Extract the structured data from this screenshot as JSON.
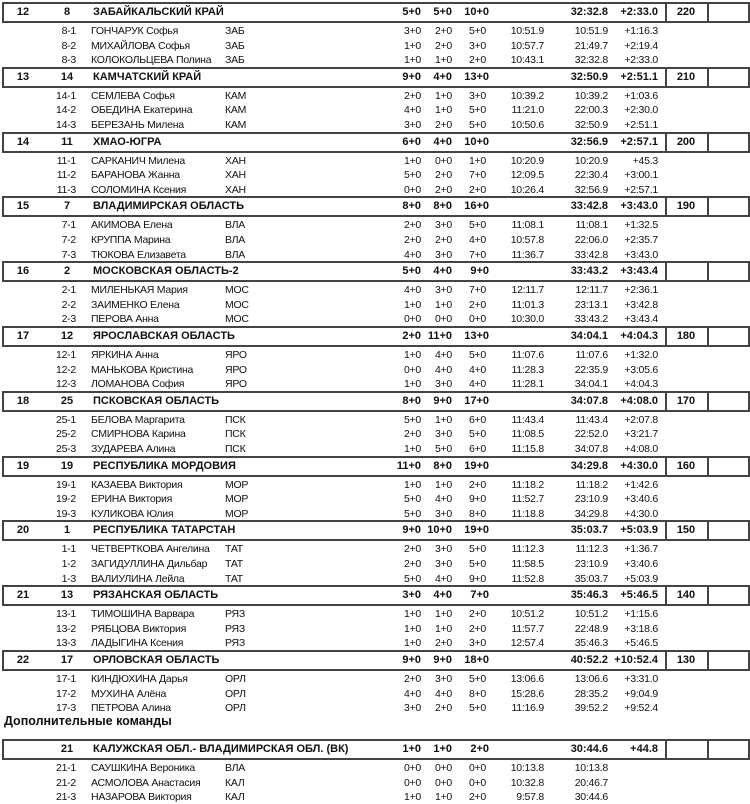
{
  "teams": [
    {
      "place": "12",
      "bib": "8",
      "name": "ЗАБАЙКАЛЬСКИЙ КРАЙ",
      "s1": "5+0",
      "s2": "5+0",
      "tot": "10+0",
      "time": "32:32.8",
      "behind": "+2:33.0",
      "points": "220",
      "members": [
        [
          "8-1",
          "ГОНЧАРУК Софья",
          "ЗАБ",
          "3+0",
          "2+0",
          "5+0",
          "10:51.9",
          "10:51.9",
          "+1:16.3"
        ],
        [
          "8-2",
          "МИХАЙЛОВА Софья",
          "ЗАБ",
          "1+0",
          "2+0",
          "3+0",
          "10:57.7",
          "21:49.7",
          "+2:19.4"
        ],
        [
          "8-3",
          "КОЛОКОЛЬЦЕВА Полина",
          "ЗАБ",
          "1+0",
          "1+0",
          "2+0",
          "10:43.1",
          "32:32.8",
          "+2:33.0"
        ]
      ]
    },
    {
      "place": "13",
      "bib": "14",
      "name": "КАМЧАТСКИЙ КРАЙ",
      "s1": "9+0",
      "s2": "4+0",
      "tot": "13+0",
      "time": "32:50.9",
      "behind": "+2:51.1",
      "points": "210",
      "members": [
        [
          "14-1",
          "СЕМЛЕВА Софья",
          "КАМ",
          "2+0",
          "1+0",
          "3+0",
          "10:39.2",
          "10:39.2",
          "+1:03.6"
        ],
        [
          "14-2",
          "ОБЕДИНА Екатерина",
          "КАМ",
          "4+0",
          "1+0",
          "5+0",
          "11:21.0",
          "22:00.3",
          "+2:30.0"
        ],
        [
          "14-3",
          "БЕРЕЗАНЬ Милена",
          "КАМ",
          "3+0",
          "2+0",
          "5+0",
          "10:50.6",
          "32:50.9",
          "+2:51.1"
        ]
      ]
    },
    {
      "place": "14",
      "bib": "11",
      "name": "ХМАО-ЮГРА",
      "s1": "6+0",
      "s2": "4+0",
      "tot": "10+0",
      "time": "32:56.9",
      "behind": "+2:57.1",
      "points": "200",
      "members": [
        [
          "11-1",
          "САРКАНИЧ Милена",
          "ХАН",
          "1+0",
          "0+0",
          "1+0",
          "10:20.9",
          "10:20.9",
          "+45.3"
        ],
        [
          "11-2",
          "БАРАНОВА Жанна",
          "ХАН",
          "5+0",
          "2+0",
          "7+0",
          "12:09.5",
          "22:30.4",
          "+3:00.1"
        ],
        [
          "11-3",
          "СОЛОМИНА Ксения",
          "ХАН",
          "0+0",
          "2+0",
          "2+0",
          "10:26.4",
          "32:56.9",
          "+2:57.1"
        ]
      ]
    },
    {
      "place": "15",
      "bib": "7",
      "name": "ВЛАДИМИРСКАЯ ОБЛАСТЬ",
      "s1": "8+0",
      "s2": "8+0",
      "tot": "16+0",
      "time": "33:42.8",
      "behind": "+3:43.0",
      "points": "190",
      "members": [
        [
          "7-1",
          "АКИМОВА Елена",
          "ВЛА",
          "2+0",
          "3+0",
          "5+0",
          "11:08.1",
          "11:08.1",
          "+1:32.5"
        ],
        [
          "7-2",
          "КРУППА Марина",
          "ВЛА",
          "2+0",
          "2+0",
          "4+0",
          "10:57.8",
          "22:06.0",
          "+2:35.7"
        ],
        [
          "7-3",
          "ТЮКОВА Елизавета",
          "ВЛА",
          "4+0",
          "3+0",
          "7+0",
          "11:36.7",
          "33:42.8",
          "+3:43.0"
        ]
      ]
    },
    {
      "place": "16",
      "bib": "2",
      "name": "МОСКОВСКАЯ ОБЛАСТЬ-2",
      "s1": "5+0",
      "s2": "4+0",
      "tot": "9+0",
      "time": "33:43.2",
      "behind": "+3:43.4",
      "points": "",
      "members": [
        [
          "2-1",
          "МИЛЕНЬКАЯ Мария",
          "МОС",
          "4+0",
          "3+0",
          "7+0",
          "12:11.7",
          "12:11.7",
          "+2:36.1"
        ],
        [
          "2-2",
          "ЗАИМЕНКО Елена",
          "МОС",
          "1+0",
          "1+0",
          "2+0",
          "11:01.3",
          "23:13.1",
          "+3:42.8"
        ],
        [
          "2-3",
          "ПЕРОВА Анна",
          "МОС",
          "0+0",
          "0+0",
          "0+0",
          "10:30.0",
          "33:43.2",
          "+3:43.4"
        ]
      ]
    },
    {
      "place": "17",
      "bib": "12",
      "name": "ЯРОСЛАВСКАЯ ОБЛАСТЬ",
      "s1": "2+0",
      "s2": "11+0",
      "tot": "13+0",
      "time": "34:04.1",
      "behind": "+4:04.3",
      "points": "180",
      "members": [
        [
          "12-1",
          "ЯРКИНА Анна",
          "ЯРО",
          "1+0",
          "4+0",
          "5+0",
          "11:07.6",
          "11:07.6",
          "+1:32.0"
        ],
        [
          "12-2",
          "МАНЬКОВА Кристина",
          "ЯРО",
          "0+0",
          "4+0",
          "4+0",
          "11:28.3",
          "22:35.9",
          "+3:05.6"
        ],
        [
          "12-3",
          "ЛОМАНОВА София",
          "ЯРО",
          "1+0",
          "3+0",
          "4+0",
          "11:28.1",
          "34:04.1",
          "+4:04.3"
        ]
      ]
    },
    {
      "place": "18",
      "bib": "25",
      "name": "ПСКОВСКАЯ ОБЛАСТЬ",
      "s1": "8+0",
      "s2": "9+0",
      "tot": "17+0",
      "time": "34:07.8",
      "behind": "+4:08.0",
      "points": "170",
      "members": [
        [
          "25-1",
          "БЕЛОВА Маргарита",
          "ПСК",
          "5+0",
          "1+0",
          "6+0",
          "11:43.4",
          "11:43.4",
          "+2:07.8"
        ],
        [
          "25-2",
          "СМИРНОВА Карина",
          "ПСК",
          "2+0",
          "3+0",
          "5+0",
          "11:08.5",
          "22:52.0",
          "+3:21.7"
        ],
        [
          "25-3",
          "ЗУДАРЕВА Алина",
          "ПСК",
          "1+0",
          "5+0",
          "6+0",
          "11:15.8",
          "34:07.8",
          "+4:08.0"
        ]
      ]
    },
    {
      "place": "19",
      "bib": "19",
      "name": "РЕСПУБЛИКА МОРДОВИЯ",
      "s1": "11+0",
      "s2": "8+0",
      "tot": "19+0",
      "time": "34:29.8",
      "behind": "+4:30.0",
      "points": "160",
      "members": [
        [
          "19-1",
          "КАЗАЕВА Виктория",
          "МОР",
          "1+0",
          "1+0",
          "2+0",
          "11:18.2",
          "11:18.2",
          "+1:42.6"
        ],
        [
          "19-2",
          "ЕРИНА Виктория",
          "МОР",
          "5+0",
          "4+0",
          "9+0",
          "11:52.7",
          "23:10.9",
          "+3:40.6"
        ],
        [
          "19-3",
          "КУЛИКОВА Юлия",
          "МОР",
          "5+0",
          "3+0",
          "8+0",
          "11:18.8",
          "34:29.8",
          "+4:30.0"
        ]
      ]
    },
    {
      "place": "20",
      "bib": "1",
      "name": "РЕСПУБЛИКА ТАТАРСТАН",
      "s1": "9+0",
      "s2": "10+0",
      "tot": "19+0",
      "time": "35:03.7",
      "behind": "+5:03.9",
      "points": "150",
      "members": [
        [
          "1-1",
          "ЧЕТВЕРТКОВА Ангелина",
          "ТАТ",
          "2+0",
          "3+0",
          "5+0",
          "11:12.3",
          "11:12.3",
          "+1:36.7"
        ],
        [
          "1-2",
          "ЗАГИДУЛЛИНА Дильбар",
          "ТАТ",
          "2+0",
          "3+0",
          "5+0",
          "11:58.5",
          "23:10.9",
          "+3:40.6"
        ],
        [
          "1-3",
          "ВАЛИУЛИНА Лейла",
          "ТАТ",
          "5+0",
          "4+0",
          "9+0",
          "11:52.8",
          "35:03.7",
          "+5:03.9"
        ]
      ]
    },
    {
      "place": "21",
      "bib": "13",
      "name": "РЯЗАНСКАЯ ОБЛАСТЬ",
      "s1": "3+0",
      "s2": "4+0",
      "tot": "7+0",
      "time": "35:46.3",
      "behind": "+5:46.5",
      "points": "140",
      "members": [
        [
          "13-1",
          "ТИМОШИНА Варвара",
          "РЯЗ",
          "1+0",
          "1+0",
          "2+0",
          "10:51.2",
          "10:51.2",
          "+1:15.6"
        ],
        [
          "13-2",
          "РЯБЦОВА Виктория",
          "РЯЗ",
          "1+0",
          "1+0",
          "2+0",
          "11:57.7",
          "22:48.9",
          "+3:18.6"
        ],
        [
          "13-3",
          "ЛАДЫГИНА Ксения",
          "РЯЗ",
          "1+0",
          "2+0",
          "3+0",
          "12:57.4",
          "35:46.3",
          "+5:46.5"
        ]
      ]
    },
    {
      "place": "22",
      "bib": "17",
      "name": "ОРЛОВСКАЯ ОБЛАСТЬ",
      "s1": "9+0",
      "s2": "9+0",
      "tot": "18+0",
      "time": "40:52.2",
      "behind": "+10:52.4",
      "points": "130",
      "members": [
        [
          "17-1",
          "КИНДЮХИНА Дарья",
          "ОРЛ",
          "2+0",
          "3+0",
          "5+0",
          "13:06.6",
          "13:06.6",
          "+3:31.0"
        ],
        [
          "17-2",
          "МУХИНА Алёна",
          "ОРЛ",
          "4+0",
          "4+0",
          "8+0",
          "15:28.6",
          "28:35.2",
          "+9:04.9"
        ],
        [
          "17-3",
          "ПЕТРОВА Алина",
          "ОРЛ",
          "3+0",
          "2+0",
          "5+0",
          "11:16.9",
          "39:52.2",
          "+9:52.4"
        ]
      ]
    }
  ],
  "extra_heading": "Дополнительные команды",
  "extra_teams": [
    {
      "place": "",
      "bib": "21",
      "name": "КАЛУЖСКАЯ ОБЛ.- ВЛАДИМИРСКАЯ ОБЛ. (ВК)",
      "s1": "1+0",
      "s2": "1+0",
      "tot": "2+0",
      "time": "30:44.6",
      "behind": "+44.8",
      "points": "",
      "members": [
        [
          "21-1",
          "САУШКИНА Вероника",
          "ВЛА",
          "0+0",
          "0+0",
          "0+0",
          "10:13.8",
          "10:13.8",
          ""
        ],
        [
          "21-2",
          "АСМОЛОВА Анастасия",
          "КАЛ",
          "0+0",
          "0+0",
          "0+0",
          "10:32.8",
          "20:46.7",
          ""
        ],
        [
          "21-3",
          "НАЗАРОВА Виктория",
          "КАЛ",
          "1+0",
          "1+0",
          "2+0",
          "9:57.8",
          "30:44.6",
          ""
        ]
      ]
    }
  ]
}
